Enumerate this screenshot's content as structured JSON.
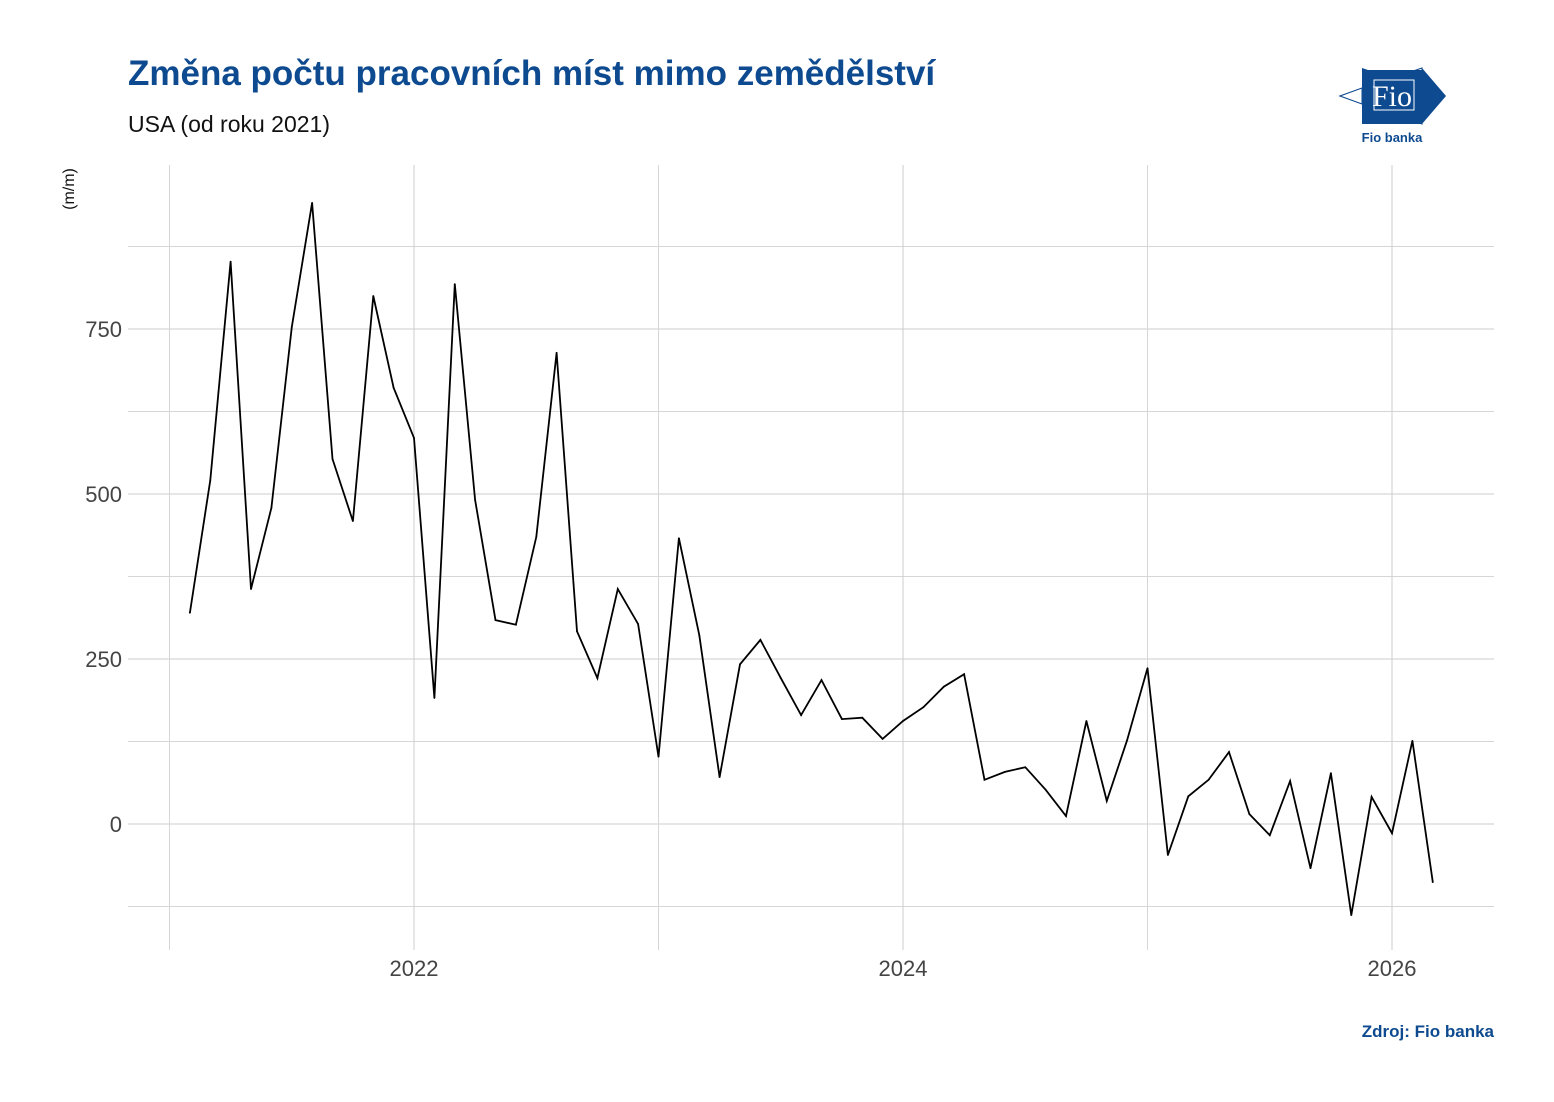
{
  "title": "Změna počtu pracovních míst mimo zemědělství",
  "subtitle": "USA (od roku 2021)",
  "source": "Zdroj: Fio banka",
  "logo": {
    "text": "Fio",
    "caption": "Fio banka",
    "color": "#0e4a8f"
  },
  "chart_data": {
    "type": "line",
    "title": "Změna počtu pracovních míst mimo zemědělství",
    "subtitle": "USA (od roku 2021)",
    "xlabel": "",
    "ylabel": "(m/m)",
    "ylim": [
      -175,
      1000
    ],
    "xlim": [
      "2021-01",
      "2026-06"
    ],
    "x_ticks": [
      "2022",
      "2024",
      "2026"
    ],
    "y_ticks": [
      "0",
      "250",
      "500",
      "750"
    ],
    "grid": true,
    "line_color": "#000000",
    "x": [
      "2021-02",
      "2021-03",
      "2021-04",
      "2021-05",
      "2021-06",
      "2021-07",
      "2021-08",
      "2021-09",
      "2021-10",
      "2021-11",
      "2021-12",
      "2022-01",
      "2022-02",
      "2022-03",
      "2022-04",
      "2022-05",
      "2022-06",
      "2022-07",
      "2022-08",
      "2022-09",
      "2022-10",
      "2022-11",
      "2022-12",
      "2023-01",
      "2023-02",
      "2023-03",
      "2023-04",
      "2023-05",
      "2023-06",
      "2023-07",
      "2023-08",
      "2023-09",
      "2023-10",
      "2023-11",
      "2023-12",
      "2024-01",
      "2024-02",
      "2024-03",
      "2024-04",
      "2024-05",
      "2024-06",
      "2024-07",
      "2024-08",
      "2024-09",
      "2024-10",
      "2024-11",
      "2024-12",
      "2025-01",
      "2025-02",
      "2025-03",
      "2025-04",
      "2025-05",
      "2025-06",
      "2025-07",
      "2025-08",
      "2025-09",
      "2025-10",
      "2025-11",
      "2025-12",
      "2026-01",
      "2026-02",
      "2026-03"
    ],
    "values": [
      320,
      521,
      852,
      356,
      479,
      753,
      941,
      553,
      459,
      800,
      661,
      585,
      191,
      818,
      491,
      309,
      302,
      435,
      714,
      292,
      221,
      356,
      303,
      102,
      433,
      286,
      71,
      242,
      279,
      221,
      165,
      218,
      159,
      161,
      129,
      156,
      177,
      208,
      227,
      67,
      79,
      86,
      52,
      12,
      156,
      35,
      127,
      236,
      -47,
      42,
      67,
      109,
      15,
      -17,
      65,
      -67,
      77,
      -138,
      41,
      -14,
      126,
      -88
    ]
  }
}
